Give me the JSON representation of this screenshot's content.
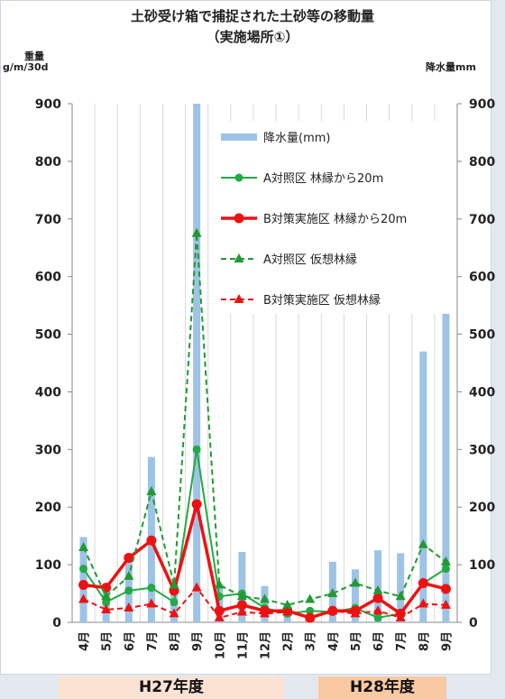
{
  "chart_data": {
    "type": "bar+line",
    "title": "土砂受け箱で捕捉された土砂等の移動量",
    "subtitle": "（実施場所①）",
    "ylabel_left_line1": "重量",
    "ylabel_left_line2": "g/m/30d",
    "ylabel_right": "降水量mm",
    "ylim": [
      0,
      900
    ],
    "yticks": [
      0,
      100,
      200,
      300,
      400,
      500,
      600,
      700,
      800,
      900
    ],
    "categories": [
      "4月",
      "5月",
      "6月",
      "7月",
      "8月",
      "9月",
      "10月",
      "11月",
      "12月",
      "2月",
      "3月",
      "4月",
      "5月",
      "6月",
      "7月",
      "8月",
      "9月"
    ],
    "fiscal_years": [
      {
        "label": "H27年度",
        "from_index": 0,
        "to_index": 10
      },
      {
        "label": "H28年度",
        "from_index": 11,
        "to_index": 16
      }
    ],
    "series": [
      {
        "name": "降水量(mm)",
        "kind": "bar",
        "color": "#9dc3e6",
        "values": [
          148,
          55,
          112,
          287,
          65,
          900,
          65,
          122,
          63,
          15,
          10,
          105,
          92,
          125,
          120,
          470,
          650
        ]
      },
      {
        "name": "A対照区 林縁から20m",
        "kind": "line",
        "style": "solid",
        "marker": "circle",
        "color": "#22aa44",
        "values": [
          93,
          35,
          55,
          60,
          35,
          300,
          45,
          50,
          25,
          15,
          20,
          18,
          25,
          8,
          15,
          68,
          93
        ]
      },
      {
        "name": "B対策実施区 林縁から20m",
        "kind": "line",
        "style": "solid-thick",
        "marker": "circle",
        "color": "#ee1111",
        "values": [
          65,
          60,
          112,
          142,
          55,
          205,
          20,
          30,
          20,
          20,
          8,
          20,
          20,
          42,
          15,
          68,
          58
        ]
      },
      {
        "name": "A対照区 仮想林縁",
        "kind": "line",
        "style": "dashed",
        "marker": "triangle",
        "color": "#229933",
        "values": [
          130,
          45,
          80,
          227,
          65,
          675,
          65,
          45,
          40,
          30,
          40,
          50,
          68,
          55,
          45,
          135,
          105
        ]
      },
      {
        "name": "B対策実施区 仮想林縁",
        "kind": "line",
        "style": "dashed",
        "marker": "triangle",
        "color": "#ee1111",
        "values": [
          40,
          22,
          25,
          32,
          15,
          60,
          8,
          18,
          15,
          18,
          8,
          20,
          15,
          20,
          8,
          32,
          30
        ]
      }
    ]
  }
}
